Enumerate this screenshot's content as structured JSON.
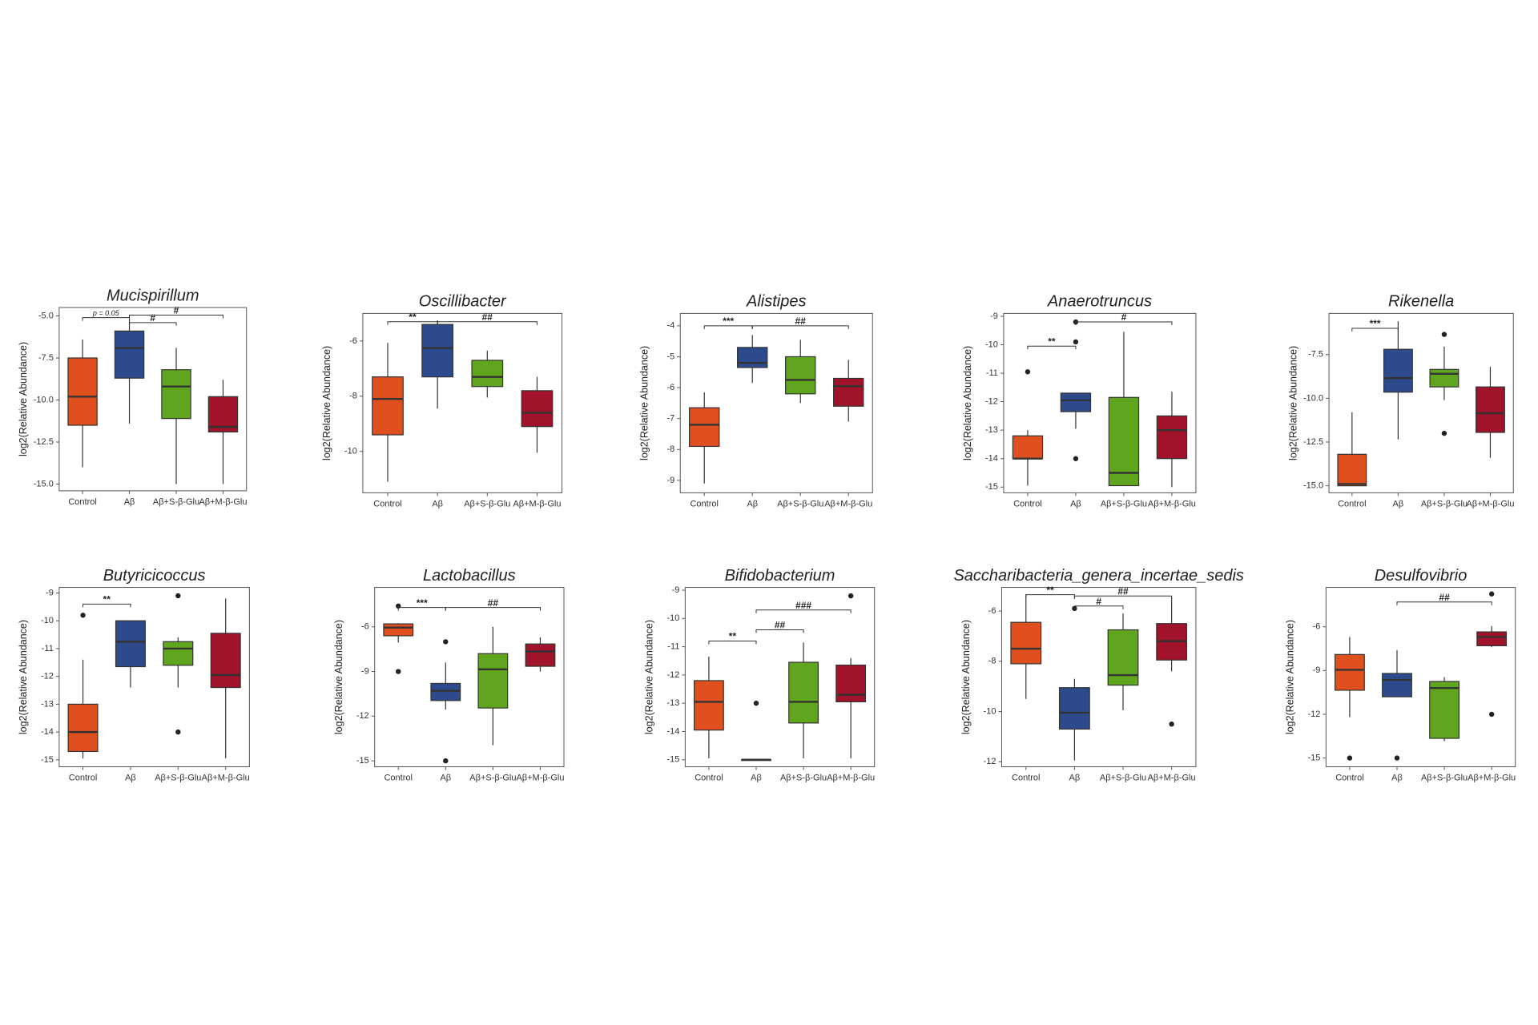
{
  "chart_data": [
    {
      "type": "box",
      "title": "Mucispirillum",
      "y_label": "log2(Relative Abundance)",
      "categories": [
        "Control",
        "Aβ",
        "Aβ+S-β-Glu",
        "Aβ+M-β-Glu"
      ],
      "colors": [
        "#e0501f",
        "#2c4a8c",
        "#5fa61e",
        "#a0132a"
      ],
      "ylim": [
        -15.4,
        -4.5
      ],
      "yticks": [
        {
          "value": -5,
          "label": "-5.0"
        },
        -7.5,
        {
          "value": -10,
          "label": "-10.0"
        },
        -12.5,
        {
          "value": -15,
          "label": "-15.0"
        }
      ],
      "boxes": [
        {
          "min": -14,
          "q1": -11.5,
          "median": -9.8,
          "q3": -7.5,
          "max": -6.4
        },
        {
          "min": -11.4,
          "q1": -8.7,
          "median": -6.9,
          "q3": -5.9,
          "max": -5.2
        },
        {
          "min": -15,
          "q1": -11.1,
          "median": -9.2,
          "q3": -8.2,
          "max": -6.9
        },
        {
          "min": -15,
          "q1": -11.9,
          "median": -11.6,
          "q3": -9.8,
          "max": -8.8
        }
      ],
      "annotations": [
        {
          "text": "p = 0.05",
          "from": "Control",
          "to": "Aβ",
          "y": -5.1
        },
        {
          "text": "#",
          "from": "Aβ",
          "to": "Aβ+S-β-Glu",
          "y": -5.4
        },
        {
          "text": "#",
          "from": "Aβ",
          "to": "Aβ+M-β-Glu",
          "y": -4.95
        }
      ]
    },
    {
      "type": "box",
      "title": "Oscillibacter",
      "y_label": "log2(Relative Abundance)",
      "categories": [
        "Control",
        "Aβ",
        "Aβ+S-β-Glu",
        "Aβ+M-β-Glu"
      ],
      "colors": [
        "#e0501f",
        "#2c4a8c",
        "#5fa61e",
        "#a0132a"
      ],
      "ylim": [
        -11.5,
        -5.0
      ],
      "yticks": [
        -6,
        -8,
        -10
      ],
      "boxes": [
        {
          "min": -11.1,
          "q1": -9.4,
          "median": -8.1,
          "q3": -7.3,
          "max": -6.07
        },
        {
          "min": -8.45,
          "q1": -7.3,
          "median": -6.25,
          "q3": -5.4,
          "max": -5.25
        },
        {
          "min": -8.05,
          "q1": -7.65,
          "median": -7.3,
          "q3": -6.7,
          "max": -6.35
        },
        {
          "min": -10.05,
          "q1": -9.1,
          "median": -8.6,
          "q3": -7.8,
          "max": -7.3
        }
      ],
      "annotations": [
        {
          "text": "**",
          "from": "Control",
          "to": "Aβ",
          "y": -5.3
        },
        {
          "text": "##",
          "from": "Aβ",
          "to": "Aβ+M-β-Glu",
          "y": -5.3
        }
      ]
    },
    {
      "type": "box",
      "title": "Alistipes",
      "y_label": "log2(Relative Abundance)",
      "categories": [
        "Control",
        "Aβ",
        "Aβ+S-β-Glu",
        "Aβ+M-β-Glu"
      ],
      "colors": [
        "#e0501f",
        "#2c4a8c",
        "#5fa61e",
        "#a0132a"
      ],
      "ylim": [
        -9.4,
        -3.6
      ],
      "yticks": [
        -4,
        -5,
        -6,
        -7,
        -8,
        -9
      ],
      "boxes": [
        {
          "min": -9.1,
          "q1": -7.9,
          "median": -7.2,
          "q3": -6.65,
          "max": -6.15
        },
        {
          "min": -5.85,
          "q1": -5.35,
          "median": -5.2,
          "q3": -4.7,
          "max": -4.3
        },
        {
          "min": -6.5,
          "q1": -6.2,
          "median": -5.75,
          "q3": -5.0,
          "max": -4.45
        },
        {
          "min": -7.1,
          "q1": -6.6,
          "median": -5.95,
          "q3": -5.7,
          "max": -5.1
        }
      ],
      "annotations": [
        {
          "text": "***",
          "from": "Control",
          "to": "Aβ",
          "y": -4.0
        },
        {
          "text": "##",
          "from": "Aβ",
          "to": "Aβ+M-β-Glu",
          "y": -4.0
        }
      ]
    },
    {
      "type": "box",
      "title": "Anaerotruncus",
      "y_label": "log2(Relative Abundance)",
      "categories": [
        "Control",
        "Aβ",
        "Aβ+S-β-Glu",
        "Aβ+M-β-Glu"
      ],
      "colors": [
        "#e0501f",
        "#2c4a8c",
        "#5fa61e",
        "#a0132a"
      ],
      "ylim": [
        -15.2,
        -8.9
      ],
      "yticks": [
        -9,
        -10,
        -11,
        -12,
        -13,
        -14,
        -15
      ],
      "boxes": [
        {
          "min": -14.95,
          "q1": -14.0,
          "median": -14.0,
          "q3": -13.2,
          "max": -13.0,
          "outliers": [
            -10.95
          ]
        },
        {
          "min": -12.95,
          "q1": -12.35,
          "median": -11.95,
          "q3": -11.7,
          "max": -11.7,
          "outliers": [
            -9.2,
            -9.9,
            -14.0
          ]
        },
        {
          "min": -14.95,
          "q1": -14.95,
          "median": -14.5,
          "q3": -11.85,
          "max": -9.55
        },
        {
          "min": -15,
          "q1": -14.0,
          "median": -13.0,
          "q3": -12.5,
          "max": -11.65
        }
      ],
      "annotations": [
        {
          "text": "**",
          "from": "Control",
          "to": "Aβ",
          "y": -10.05
        },
        {
          "text": "#",
          "from": "Aβ",
          "to": "Aβ+M-β-Glu",
          "y": -9.2
        }
      ]
    },
    {
      "type": "box",
      "title": "Rikenella",
      "y_label": "log2(Relative Abundance)",
      "categories": [
        "Control",
        "Aβ",
        "Aβ+S-β-Glu",
        "Aβ+M-β-Glu"
      ],
      "colors": [
        "#e0501f",
        "#2c4a8c",
        "#5fa61e",
        "#a0132a"
      ],
      "ylim": [
        -15.4,
        -5.15
      ],
      "yticks": [
        -7.5,
        {
          "value": -10,
          "label": "-10.0"
        },
        -12.5,
        {
          "value": -15,
          "label": "-15.0"
        }
      ],
      "boxes": [
        {
          "min": -15,
          "q1": -15.0,
          "median": -14.9,
          "q3": -13.2,
          "max": -10.8
        },
        {
          "min": -12.35,
          "q1": -9.65,
          "median": -8.85,
          "q3": -7.2,
          "max": -5.6
        },
        {
          "min": -10.1,
          "q1": -9.35,
          "median": -8.6,
          "q3": -8.35,
          "max": -7.05,
          "outliers": [
            -6.35,
            -12.0
          ]
        },
        {
          "min": -13.4,
          "q1": -11.95,
          "median": -10.85,
          "q3": -9.35,
          "max": -8.2
        }
      ],
      "annotations": [
        {
          "text": "***",
          "from": "Control",
          "to": "Aβ",
          "y": -6.0
        }
      ]
    },
    {
      "type": "box",
      "title": "Butyricicoccus",
      "y_label": "log2(Relative Abundance)",
      "categories": [
        "Control",
        "Aβ",
        "Aβ+S-β-Glu",
        "Aβ+M-β-Glu"
      ],
      "colors": [
        "#e0501f",
        "#2c4a8c",
        "#5fa61e",
        "#a0132a"
      ],
      "ylim": [
        -15.25,
        -8.8
      ],
      "yticks": [
        -9,
        -10,
        -11,
        -12,
        -13,
        -14,
        -15
      ],
      "boxes": [
        {
          "min": -14.95,
          "q1": -14.7,
          "median": -14.0,
          "q3": -13.0,
          "max": -11.4,
          "outliers": [
            -9.8
          ]
        },
        {
          "min": -12.4,
          "q1": -11.65,
          "median": -10.75,
          "q3": -10.0,
          "max": -10.0
        },
        {
          "min": -12.4,
          "q1": -11.6,
          "median": -11.0,
          "q3": -10.75,
          "max": -10.6,
          "outliers": [
            -9.1,
            -14.0
          ]
        },
        {
          "min": -14.95,
          "q1": -12.4,
          "median": -11.95,
          "q3": -10.45,
          "max": -9.2
        }
      ],
      "annotations": [
        {
          "text": "**",
          "from": "Control",
          "to": "Aβ",
          "y": -9.4
        }
      ]
    },
    {
      "type": "box",
      "title": "Lactobacillus",
      "y_label": "log2(Relative Abundance)",
      "categories": [
        "Control",
        "Aβ",
        "Aβ+S-β-Glu",
        "Aβ+M-β-Glu"
      ],
      "colors": [
        "#e0501f",
        "#2c4a8c",
        "#5fa61e",
        "#a0132a"
      ],
      "ylim": [
        -15.4,
        -3.35
      ],
      "yticks": [
        -6,
        -9,
        -12,
        -15
      ],
      "boxes": [
        {
          "min": -7.05,
          "q1": -6.6,
          "median": -6.05,
          "q3": -5.8,
          "max": -5.75,
          "outliers": [
            -4.6,
            -9.0
          ]
        },
        {
          "min": -11.55,
          "q1": -10.95,
          "median": -10.3,
          "q3": -9.8,
          "max": -8.4,
          "outliers": [
            -7.0,
            -15.0
          ]
        },
        {
          "min": -13.95,
          "q1": -11.45,
          "median": -8.85,
          "q3": -7.8,
          "max": -6.0
        },
        {
          "min": -9.0,
          "q1": -8.65,
          "median": -7.65,
          "q3": -7.15,
          "max": -6.7
        }
      ],
      "annotations": [
        {
          "text": "***",
          "from": "Control",
          "to": "Aβ",
          "y": -4.7
        },
        {
          "text": "##",
          "from": "Aβ",
          "to": "Aβ+M-β-Glu",
          "y": -4.7
        }
      ]
    },
    {
      "type": "box",
      "title": "Bifidobacterium",
      "y_label": "log2(Relative Abundance)",
      "categories": [
        "Control",
        "Aβ",
        "Aβ+S-β-Glu",
        "Aβ+M-β-Glu"
      ],
      "colors": [
        "#e0501f",
        "#2c4a8c",
        "#5fa61e",
        "#a0132a"
      ],
      "ylim": [
        -15.25,
        -8.9
      ],
      "yticks": [
        -9,
        -10,
        -11,
        -12,
        -13,
        -14,
        -15
      ],
      "boxes": [
        {
          "min": -14.95,
          "q1": -13.95,
          "median": -12.95,
          "q3": -12.2,
          "max": -11.35
        },
        {
          "min": -15,
          "q1": -15,
          "median": -15,
          "q3": -15,
          "max": -15,
          "outliers": [
            -13.0
          ]
        },
        {
          "min": -14.95,
          "q1": -13.7,
          "median": -12.95,
          "q3": -11.55,
          "max": -10.85
        },
        {
          "min": -14.95,
          "q1": -12.95,
          "median": -12.7,
          "q3": -11.65,
          "max": -11.4,
          "outliers": [
            -9.2
          ]
        }
      ],
      "annotations": [
        {
          "text": "**",
          "from": "Control",
          "to": "Aβ",
          "y": -10.8
        },
        {
          "text": "##",
          "from": "Aβ",
          "to": "Aβ+S-β-Glu",
          "y": -10.4
        },
        {
          "text": "###",
          "from": "Aβ",
          "to": "Aβ+M-β-Glu",
          "y": -9.7
        }
      ]
    },
    {
      "type": "box",
      "title": "Saccharibacteria_genera_incertae_sedis",
      "y_label": "log2(Relative Abundance)",
      "categories": [
        "Control",
        "Aβ",
        "Aβ+S-β-Glu",
        "Aβ+M-β-Glu"
      ],
      "colors": [
        "#e0501f",
        "#2c4a8c",
        "#5fa61e",
        "#a0132a"
      ],
      "ylim": [
        -12.2,
        -5.06
      ],
      "yticks": [
        -6,
        -8,
        -10,
        -12
      ],
      "boxes": [
        {
          "min": -9.5,
          "q1": -8.1,
          "median": -7.5,
          "q3": -6.45,
          "max": -5.35
        },
        {
          "min": -11.95,
          "q1": -10.7,
          "median": -10.05,
          "q3": -9.05,
          "max": -8.7,
          "outliers": [
            -5.9
          ]
        },
        {
          "min": -9.95,
          "q1": -8.95,
          "median": -8.55,
          "q3": -6.75,
          "max": -6.1
        },
        {
          "min": -8.4,
          "q1": -7.95,
          "median": -7.2,
          "q3": -6.5,
          "max": -5.45,
          "outliers": [
            -10.5
          ]
        }
      ],
      "annotations": [
        {
          "text": "**",
          "from": "Control",
          "to": "Aβ",
          "y": -5.35
        },
        {
          "text": "#",
          "from": "Aβ",
          "to": "Aβ+S-β-Glu",
          "y": -5.8
        },
        {
          "text": "##",
          "from": "Aβ",
          "to": "Aβ+M-β-Glu",
          "y": -5.4
        }
      ]
    },
    {
      "type": "box",
      "title": "Desulfovibrio",
      "y_label": "log2(Relative Abundance)",
      "categories": [
        "Control",
        "Aβ",
        "Aβ+S-β-Glu",
        "Aβ+M-β-Glu"
      ],
      "colors": [
        "#e0501f",
        "#2c4a8c",
        "#5fa61e",
        "#a0132a"
      ],
      "ylim": [
        -15.6,
        -3.3
      ],
      "yticks": [
        -6,
        -9,
        -12,
        -15
      ],
      "boxes": [
        {
          "min": -12.2,
          "q1": -10.35,
          "median": -8.95,
          "q3": -7.9,
          "max": -6.7,
          "outliers": [
            -15.0
          ]
        },
        {
          "min": -10.8,
          "q1": -10.8,
          "median": -9.65,
          "q3": -9.2,
          "max": -7.6,
          "outliers": [
            -15.0
          ]
        },
        {
          "min": -13.85,
          "q1": -13.65,
          "median": -10.2,
          "q3": -9.75,
          "max": -9.45
        },
        {
          "min": -7.4,
          "q1": -7.3,
          "median": -6.7,
          "q3": -6.35,
          "max": -5.95,
          "outliers": [
            -3.75,
            -12.0
          ]
        }
      ],
      "annotations": [
        {
          "text": "##",
          "from": "Aβ",
          "to": "Aβ+M-β-Glu",
          "y": -4.3
        }
      ]
    }
  ]
}
